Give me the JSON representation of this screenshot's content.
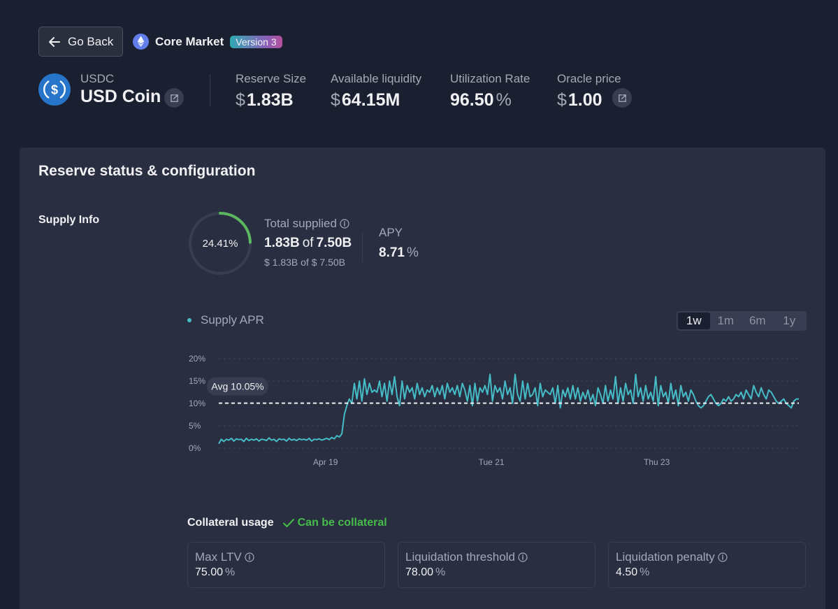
{
  "header": {
    "back_label": "Go Back",
    "market_name": "Core Market",
    "version_badge": "Version 3"
  },
  "asset": {
    "symbol": "USDC",
    "name": "USD Coin"
  },
  "stats": {
    "reserve_size": {
      "label": "Reserve Size",
      "currency": "$",
      "value": "1.83B"
    },
    "available_liquidity": {
      "label": "Available liquidity",
      "currency": "$",
      "value": "64.15M"
    },
    "utilization_rate": {
      "label": "Utilization Rate",
      "value": "96.50",
      "unit": "%"
    },
    "oracle_price": {
      "label": "Oracle price",
      "currency": "$",
      "value": "1.00"
    }
  },
  "panel": {
    "title": "Reserve status & configuration",
    "supply_info_label": "Supply Info",
    "ring": {
      "percent_text": "24.41%",
      "fraction": 0.2441
    },
    "total_supplied": {
      "label": "Total supplied",
      "amount": "1.83B",
      "of_text": "of",
      "cap": "7.50B",
      "usd_text": "$ 1.83B of $ 7.50B"
    },
    "apy": {
      "label": "APY",
      "value": "8.71",
      "unit": "%"
    },
    "chart_legend": "Supply APR",
    "ranges": [
      "1w",
      "1m",
      "6m",
      "1y"
    ],
    "active_range": "1w",
    "collateral": {
      "title": "Collateral usage",
      "status": "Can be collateral"
    },
    "params": [
      {
        "label": "Max LTV",
        "value": "75.00",
        "unit": "%"
      },
      {
        "label": "Liquidation threshold",
        "value": "78.00",
        "unit": "%"
      },
      {
        "label": "Liquidation penalty",
        "value": "4.50",
        "unit": "%"
      }
    ]
  },
  "colors": {
    "background": "#1b2030",
    "panel": "#292e41",
    "accent_line": "#46bcc6",
    "ring_green": "#5cb85f",
    "success": "#46bc4b"
  },
  "chart_data": {
    "type": "line",
    "title": "",
    "series": [
      {
        "name": "Supply APR",
        "values": [
          1.0,
          2.0,
          1.5,
          2.0,
          1.8,
          2.2,
          1.6,
          2.1,
          1.9,
          2.0,
          1.5,
          2.2,
          1.7,
          2.0,
          1.8,
          2.1,
          1.6,
          2.0,
          1.9,
          1.7,
          2.3,
          1.8,
          2.0,
          1.5,
          2.1,
          1.9,
          2.0,
          1.6,
          2.2,
          1.8,
          2.0,
          1.7,
          2.1,
          1.9,
          2.0,
          1.8,
          2.2,
          1.6,
          2.0,
          1.9,
          2.1,
          1.8,
          2.0,
          2.2,
          1.9,
          2.4,
          2.1,
          2.8,
          2.5,
          3.2,
          7.5,
          9.5,
          11.0,
          10.0,
          14.5,
          11.0,
          15.0,
          10.5,
          15.5,
          12.0,
          14.5,
          12.5,
          13.0,
          12.5,
          15.0,
          11.5,
          14.5,
          10.5,
          15.0,
          12.0,
          16.0,
          11.5,
          9.5,
          15.0,
          11.0,
          14.0,
          12.5,
          13.5,
          11.0,
          14.5,
          12.0,
          13.5,
          11.5,
          13.0,
          12.5,
          14.0,
          11.5,
          13.5,
          12.0,
          14.0,
          11.0,
          14.5,
          12.5,
          13.5,
          12.0,
          14.0,
          11.5,
          14.5,
          13.0,
          10.5,
          14.0,
          9.5,
          14.5,
          10.5,
          13.5,
          12.5,
          14.0,
          12.0,
          16.5,
          10.5,
          14.0,
          12.5,
          13.5,
          11.0,
          15.0,
          12.0,
          13.5,
          10.0,
          16.5,
          12.0,
          10.5,
          15.0,
          11.0,
          14.5,
          11.5,
          12.0,
          13.5,
          9.5,
          14.5,
          11.5,
          13.0,
          12.5,
          12.0,
          13.5,
          10.0,
          14.0,
          9.0,
          13.0,
          11.5,
          13.5,
          11.0,
          14.0,
          11.0,
          13.5,
          10.5,
          12.5,
          11.0,
          13.0,
          10.5,
          12.0,
          9.5,
          13.5,
          12.0,
          10.0,
          14.0,
          10.5,
          13.0,
          11.0,
          16.0,
          10.0,
          13.5,
          10.5,
          14.5,
          12.0,
          13.0,
          10.0,
          16.5,
          11.5,
          13.5,
          10.5,
          14.0,
          11.0,
          12.5,
          10.5,
          16.0,
          9.5,
          14.0,
          11.5,
          12.5,
          10.0,
          14.5,
          11.0,
          13.0,
          9.5,
          14.0,
          11.5,
          12.5,
          10.5,
          13.0,
          12.0,
          10.5,
          9.5,
          9.0,
          9.5,
          10.5,
          11.5,
          12.0,
          11.0,
          10.0,
          9.5,
          10.0,
          11.0,
          10.5,
          11.5,
          10.5,
          11.0,
          12.0,
          11.5,
          12.5,
          11.0,
          13.0,
          12.0,
          11.0,
          14.0,
          12.5,
          11.5,
          13.5,
          12.0,
          11.0,
          13.0,
          12.5,
          11.5,
          10.5,
          10.0,
          10.5,
          11.0,
          10.0,
          9.5,
          9.0,
          10.5,
          11.0,
          11.0
        ]
      }
    ],
    "average": 10.05,
    "average_label": "Avg 10.05%",
    "x_tick_labels": [
      "Apr 19",
      "Tue 21",
      "Thu 23"
    ],
    "x_tick_fractions": [
      0.184,
      0.47,
      0.755
    ],
    "y_ticks": [
      "0%",
      "5%",
      "10%",
      "15%",
      "20%"
    ],
    "ylim": [
      0,
      20
    ],
    "xlabel": "",
    "ylabel": "",
    "grid": true
  }
}
